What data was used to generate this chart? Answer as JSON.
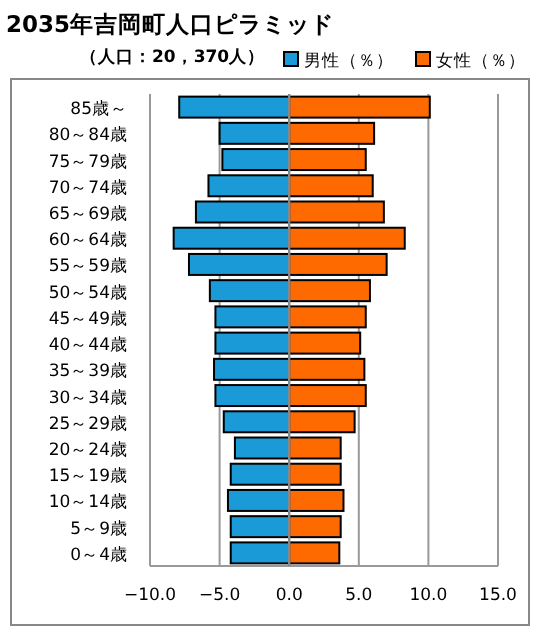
{
  "chart_data": {
    "type": "bar",
    "orientation": "horizontal",
    "stacked": true,
    "title": "2035年吉岡町人口ピラミッド",
    "subtitle": "（人口：20，370人）",
    "categories": [
      "85歳～",
      "80～84歳",
      "75～79歳",
      "70～74歳",
      "65～69歳",
      "60～64歳",
      "55～59歳",
      "50～54歳",
      "45～49歳",
      "40～44歳",
      "35～39歳",
      "30～34歳",
      "25～29歳",
      "20～24歳",
      "15～19歳",
      "10～14歳",
      "5～9歳",
      "0～4歳"
    ],
    "series": [
      {
        "name": "男性（％）",
        "color": "#1a9ad6",
        "values": [
          -7.9,
          -5.0,
          -4.8,
          -5.8,
          -6.7,
          -8.3,
          -7.2,
          -5.7,
          -5.3,
          -5.3,
          -5.4,
          -5.3,
          -4.7,
          -3.9,
          -4.2,
          -4.4,
          -4.2,
          -4.2
        ]
      },
      {
        "name": "女性（％）",
        "color": "#ff6a00",
        "values": [
          10.1,
          6.1,
          5.5,
          6.0,
          6.8,
          8.3,
          7.0,
          5.8,
          5.5,
          5.1,
          5.4,
          5.5,
          4.7,
          3.7,
          3.7,
          3.9,
          3.7,
          3.6
        ]
      }
    ],
    "xlim": [
      -10,
      15
    ],
    "xticks": [
      {
        "value": -10,
        "label": "−10.0"
      },
      {
        "value": -5,
        "label": "−5.0"
      },
      {
        "value": 0,
        "label": "0.0"
      },
      {
        "value": 5,
        "label": "5.0"
      },
      {
        "value": 10,
        "label": "10.0"
      },
      {
        "value": 15,
        "label": "15.0"
      }
    ],
    "grid": "x",
    "legend": "top right"
  }
}
